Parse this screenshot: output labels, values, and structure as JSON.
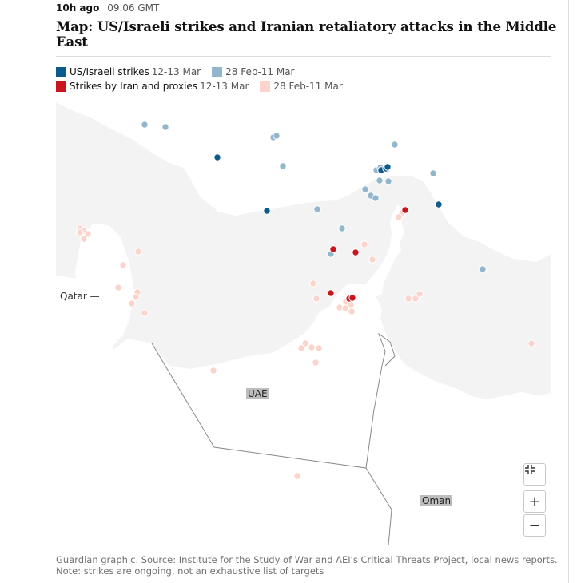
{
  "timestamp": {
    "relative": "10h ago",
    "time": "09.06 GMT"
  },
  "title": "Map: US/Israeli strikes and Iranian retaliatory attacks in the Middle East",
  "legend": {
    "us_israeli": {
      "label": "US/Israeli strikes",
      "recent": "12-13 Mar",
      "earlier": "28 Feb-11 Mar",
      "color_recent": "#0d5b8c",
      "color_earlier": "#94b6cd"
    },
    "iran": {
      "label": "Strikes by Iran and proxies",
      "recent": "12-13 Mar",
      "earlier": "28 Feb-11 Mar",
      "color_recent": "#c8161c",
      "color_earlier": "#fbd5cb"
    }
  },
  "labels": {
    "qatar": "Qatar",
    "uae": "UAE",
    "oman": "Oman"
  },
  "controls": {
    "fullscreen_icon": "fullscreen-exit-icon",
    "zoom_in": "+",
    "zoom_out": "−"
  },
  "footnote": "Guardian graphic. Source: Institute for the Study of War and AEI's Critical Threats Project, local news reports. Note: strikes are ongoing, not an exhaustive list of targets",
  "colors": {
    "land": "#ffffff",
    "sea": "#f3f3f3",
    "border": "#888888"
  }
}
